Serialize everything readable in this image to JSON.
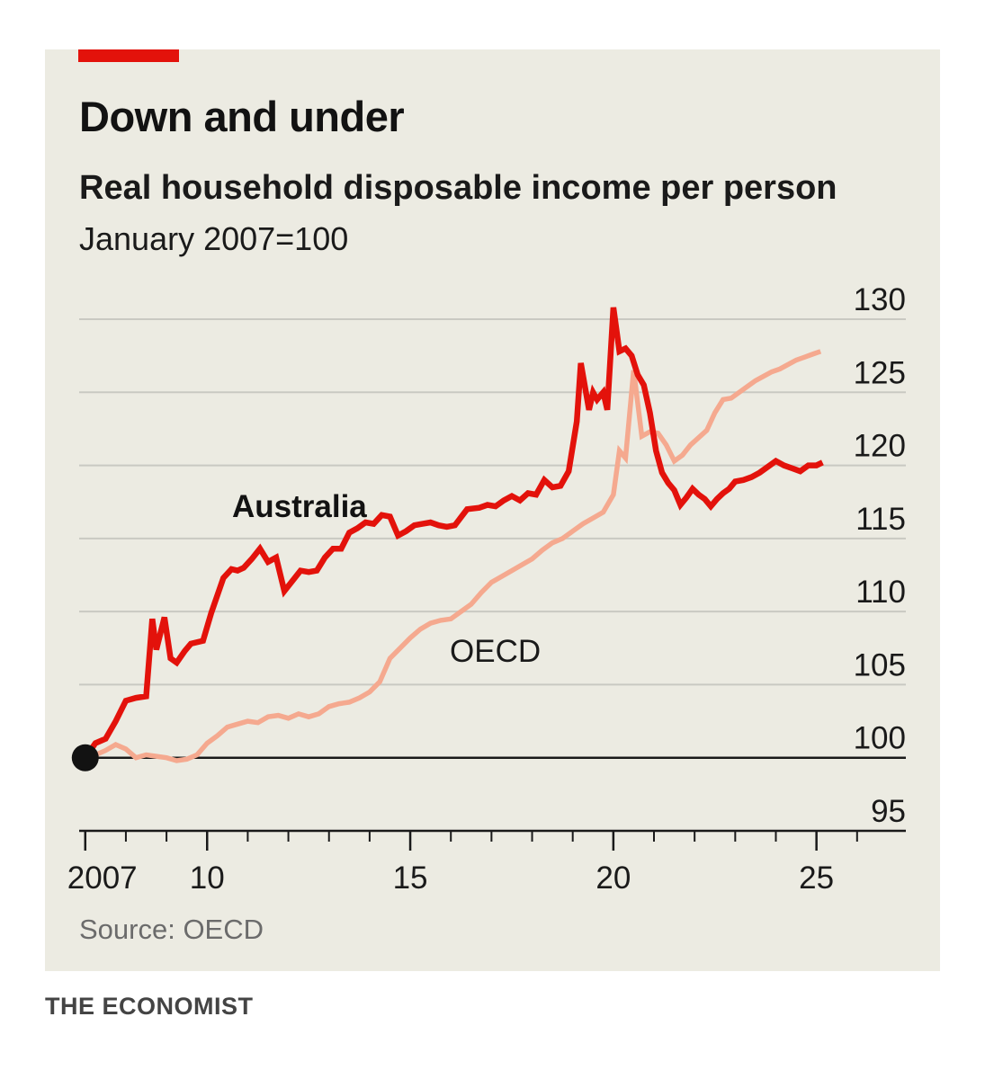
{
  "colors": {
    "australia": "#e3120b",
    "oecd": "#f5a98f",
    "grid": "#c9c9c2",
    "baseline": "#1a1a1a",
    "dot": "#121212"
  },
  "footer": "THE ECONOMIST",
  "chart_data": {
    "type": "line",
    "title": "Down and under",
    "subtitle": "Real household disposable income per person",
    "unit_label": "January 2007=100",
    "source": "Source: OECD",
    "xlabel": "",
    "ylabel": "",
    "ylim": [
      95,
      130
    ],
    "xlim": [
      2006.85,
      2027.2
    ],
    "y_ticks": [
      95,
      100,
      105,
      110,
      115,
      120,
      125,
      130
    ],
    "y_tick_labels": [
      "95",
      "100",
      "105",
      "110",
      "115",
      "120",
      "125",
      "130"
    ],
    "x_major_ticks": [
      2007,
      2010,
      2015,
      2020,
      2025
    ],
    "x_tick_labels": [
      "2007",
      "10",
      "15",
      "20",
      "25"
    ],
    "x_minor_ticks": [
      2008,
      2009,
      2011,
      2012,
      2013,
      2014,
      2016,
      2017,
      2018,
      2019,
      2021,
      2022,
      2023,
      2024,
      2026
    ],
    "baseline": 100,
    "start_marker": {
      "x": 2007.0,
      "y": 100
    },
    "series": [
      {
        "name": "Australia",
        "x": [
          2007.0,
          2007.25,
          2007.5,
          2007.75,
          2008.0,
          2008.25,
          2008.5,
          2008.65,
          2008.75,
          2008.95,
          2009.1,
          2009.25,
          2009.45,
          2009.6,
          2009.9,
          2010.1,
          2010.4,
          2010.6,
          2010.75,
          2010.9,
          2011.1,
          2011.3,
          2011.5,
          2011.7,
          2011.9,
          2012.1,
          2012.3,
          2012.5,
          2012.7,
          2012.9,
          2013.1,
          2013.3,
          2013.5,
          2013.7,
          2013.9,
          2014.1,
          2014.3,
          2014.5,
          2014.7,
          2014.9,
          2015.1,
          2015.3,
          2015.5,
          2015.7,
          2015.9,
          2016.1,
          2016.4,
          2016.7,
          2016.9,
          2017.1,
          2017.3,
          2017.5,
          2017.7,
          2017.9,
          2018.1,
          2018.3,
          2018.5,
          2018.7,
          2018.9,
          2019.1,
          2019.2,
          2019.4,
          2019.5,
          2019.6,
          2019.75,
          2019.85,
          2020.0,
          2020.15,
          2020.3,
          2020.45,
          2020.6,
          2020.75,
          2020.9,
          2021.05,
          2021.2,
          2021.35,
          2021.5,
          2021.65,
          2021.8,
          2021.95,
          2022.1,
          2022.25,
          2022.4,
          2022.55,
          2022.7,
          2022.85,
          2023.0,
          2023.2,
          2023.4,
          2023.6,
          2023.8,
          2024.0,
          2024.2,
          2024.4,
          2024.6,
          2024.8,
          2025.0,
          2025.15
        ],
        "values": [
          100.0,
          101.0,
          101.3,
          102.5,
          103.9,
          104.1,
          104.2,
          109.5,
          107.4,
          109.6,
          106.8,
          106.5,
          107.3,
          107.8,
          108.0,
          109.9,
          112.3,
          112.9,
          112.8,
          113.0,
          113.6,
          114.3,
          113.4,
          113.7,
          111.4,
          112.1,
          112.8,
          112.7,
          112.8,
          113.7,
          114.3,
          114.3,
          115.4,
          115.7,
          116.1,
          116.0,
          116.6,
          116.5,
          115.2,
          115.5,
          115.9,
          116.0,
          116.1,
          115.9,
          115.8,
          115.9,
          117.0,
          117.1,
          117.3,
          117.2,
          117.6,
          117.9,
          117.6,
          118.1,
          118.0,
          119.0,
          118.5,
          118.6,
          119.6,
          123.0,
          127.0,
          123.8,
          125.0,
          124.5,
          125.0,
          123.8,
          130.8,
          127.8,
          128.0,
          127.5,
          126.2,
          125.5,
          123.6,
          121.0,
          119.5,
          118.8,
          118.3,
          117.3,
          117.8,
          118.4,
          118.0,
          117.7,
          117.2,
          117.7,
          118.1,
          118.4,
          118.9,
          119.0,
          119.2,
          119.5,
          119.9,
          120.3,
          120.0,
          119.8,
          119.6,
          120.0,
          120.0,
          120.2
        ]
      },
      {
        "name": "OECD",
        "x": [
          2007.0,
          2007.25,
          2007.5,
          2007.75,
          2008.0,
          2008.25,
          2008.5,
          2008.75,
          2009.0,
          2009.25,
          2009.5,
          2009.75,
          2010.0,
          2010.25,
          2010.5,
          2010.75,
          2011.0,
          2011.25,
          2011.5,
          2011.75,
          2012.0,
          2012.25,
          2012.5,
          2012.75,
          2013.0,
          2013.25,
          2013.5,
          2013.75,
          2014.0,
          2014.25,
          2014.5,
          2014.75,
          2015.0,
          2015.25,
          2015.5,
          2015.75,
          2016.0,
          2016.25,
          2016.5,
          2016.75,
          2017.0,
          2017.25,
          2017.5,
          2017.75,
          2018.0,
          2018.25,
          2018.5,
          2018.75,
          2019.0,
          2019.25,
          2019.5,
          2019.75,
          2020.0,
          2020.15,
          2020.3,
          2020.5,
          2020.7,
          2020.9,
          2021.1,
          2021.3,
          2021.5,
          2021.7,
          2021.9,
          2022.1,
          2022.3,
          2022.5,
          2022.7,
          2022.9,
          2023.1,
          2023.3,
          2023.5,
          2023.7,
          2023.9,
          2024.1,
          2024.3,
          2024.5,
          2024.7,
          2024.9,
          2025.1
        ],
        "values": [
          100.0,
          100.2,
          100.5,
          100.9,
          100.6,
          100.0,
          100.2,
          100.1,
          100.0,
          99.8,
          99.9,
          100.2,
          101.0,
          101.5,
          102.1,
          102.3,
          102.5,
          102.4,
          102.8,
          102.9,
          102.7,
          103.0,
          102.8,
          103.0,
          103.5,
          103.7,
          103.8,
          104.1,
          104.5,
          105.2,
          106.8,
          107.5,
          108.2,
          108.8,
          109.2,
          109.4,
          109.5,
          110.0,
          110.5,
          111.3,
          112.0,
          112.4,
          112.8,
          113.2,
          113.6,
          114.2,
          114.7,
          115.0,
          115.5,
          116.0,
          116.4,
          116.8,
          118.0,
          121.0,
          120.5,
          126.5,
          122.0,
          122.3,
          122.2,
          121.4,
          120.3,
          120.7,
          121.4,
          121.9,
          122.4,
          123.6,
          124.5,
          124.6,
          125.0,
          125.4,
          125.8,
          126.1,
          126.4,
          126.6,
          126.9,
          127.2,
          127.4,
          127.6,
          127.8
        ]
      }
    ]
  }
}
